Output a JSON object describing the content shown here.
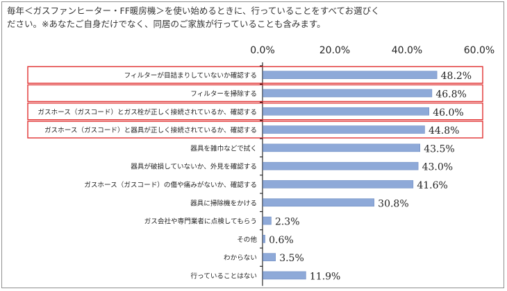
{
  "question": {
    "line1": "毎年＜ガスファンヒーター・FF暖房機＞を使い始めるときに、行っていることをすべてお選びく",
    "line2": "ださい。※あなたご自身だけでなく、同居のご家族が行っていることも含みます。"
  },
  "colors": {
    "bar": "#8ea9d8",
    "bar_edge": "#6f8dc4",
    "highlight_border": "#e03030",
    "text": "#222222",
    "axis": "#000000"
  },
  "chart_data": {
    "type": "bar",
    "orientation": "horizontal",
    "xlim": [
      0,
      60
    ],
    "ticks": [
      "0.0%",
      "20.0%",
      "40.0%",
      "60.0%"
    ],
    "tick_values": [
      0,
      20,
      40,
      60
    ],
    "grid": false,
    "categories": [
      "フィルターが目詰まりしていないか確認する",
      "フィルターを掃除する",
      "ガスホース（ガスコード）とガス栓が正しく接続されているか、確認する",
      "ガスホース（ガスコード）と器具が正しく接続されているか、確認する",
      "器具を雑巾などで拭く",
      "器具が破損していないか、外見を確認する",
      "ガスホース（ガスコード）の傷や痛みがないか、確認する",
      "器具に掃除機をかける",
      "ガス会社や専門業者に点検してもらう",
      "その他",
      "わからない",
      "行っていることはない"
    ],
    "values": [
      48.2,
      46.8,
      46.0,
      44.8,
      43.5,
      43.0,
      41.6,
      30.8,
      2.3,
      0.6,
      3.5,
      11.9
    ],
    "value_labels": [
      "48.2%",
      "46.8%",
      "46.0%",
      "44.8%",
      "43.5%",
      "43.0%",
      "41.6%",
      "30.8%",
      "2.3%",
      "0.6%",
      "3.5%",
      "11.9%"
    ],
    "highlighted": [
      0,
      1,
      2,
      3
    ]
  }
}
